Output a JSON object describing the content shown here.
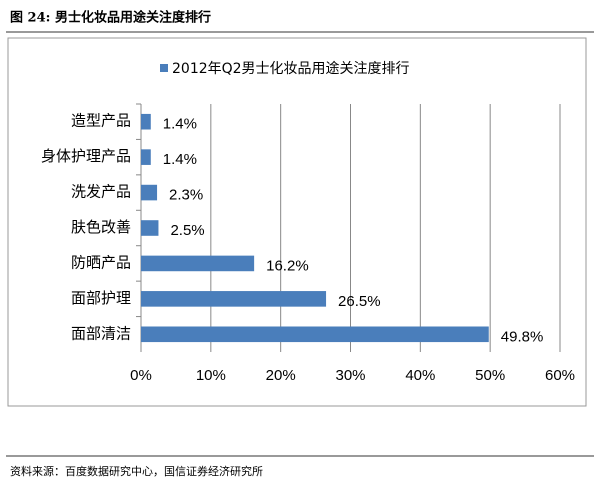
{
  "header": {
    "title": "图 24: 男士化妆品用途关注度排行"
  },
  "source": "资料来源：百度数据研究中心，国信证券经济研究所",
  "chart_data": {
    "type": "hbar",
    "categories": [
      "造型产品",
      "身体护理产品",
      "洗发产品",
      "肤色改善",
      "防晒产品",
      "面部护理",
      "面部清洁"
    ],
    "series": [
      {
        "name": "2012年Q2男士化妆品用途关注度排行",
        "color": "#4a7ebb",
        "values": [
          1.4,
          1.4,
          2.3,
          2.5,
          16.2,
          26.5,
          49.8
        ],
        "value_labels": [
          "1.4%",
          "1.4%",
          "2.3%",
          "2.5%",
          "16.2%",
          "26.5%",
          "49.8%"
        ]
      }
    ],
    "xlim": [
      0,
      60
    ],
    "xticks": [
      {
        "value": 0,
        "label": "0%"
      },
      {
        "value": 10,
        "label": "10%"
      },
      {
        "value": 20,
        "label": "20%"
      },
      {
        "value": 30,
        "label": "30%"
      },
      {
        "value": 40,
        "label": "40%"
      },
      {
        "value": 50,
        "label": "50%"
      },
      {
        "value": 60,
        "label": "60%"
      }
    ],
    "grid": true,
    "legend": "top"
  }
}
